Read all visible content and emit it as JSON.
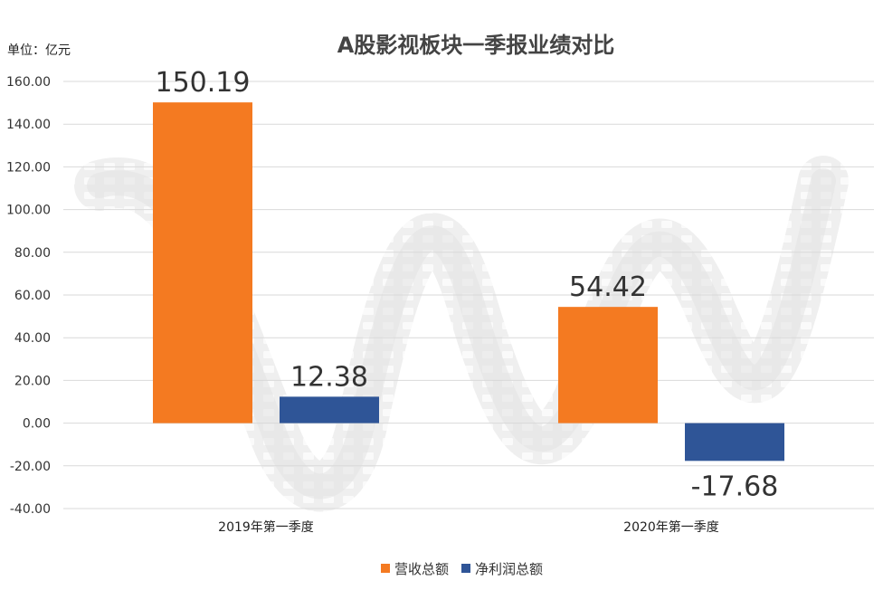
{
  "chart_data": {
    "type": "bar",
    "title": "A股影视板块一季报业绩对比",
    "unit_label": "单位：亿元",
    "categories": [
      "2019年第一季度",
      "2020年第一季度"
    ],
    "series": [
      {
        "name": "营收总额",
        "values": [
          150.19,
          54.42
        ],
        "color": "#F47A21"
      },
      {
        "name": "净利润总额",
        "values": [
          12.38,
          -17.68
        ],
        "color": "#2F5597"
      }
    ],
    "data_labels": [
      [
        "150.19",
        "54.42"
      ],
      [
        "12.38",
        "-17.68"
      ]
    ],
    "ylim": [
      -40,
      160
    ],
    "yticks": [
      "-40.00",
      "-20.00",
      "0.00",
      "20.00",
      "40.00",
      "60.00",
      "80.00",
      "100.00",
      "120.00",
      "140.00",
      "160.00"
    ],
    "ytick_values": [
      -40,
      -20,
      0,
      20,
      40,
      60,
      80,
      100,
      120,
      140,
      160
    ],
    "grid": true,
    "legend_position": "bottom"
  },
  "background": {
    "motif": "film-strip"
  }
}
